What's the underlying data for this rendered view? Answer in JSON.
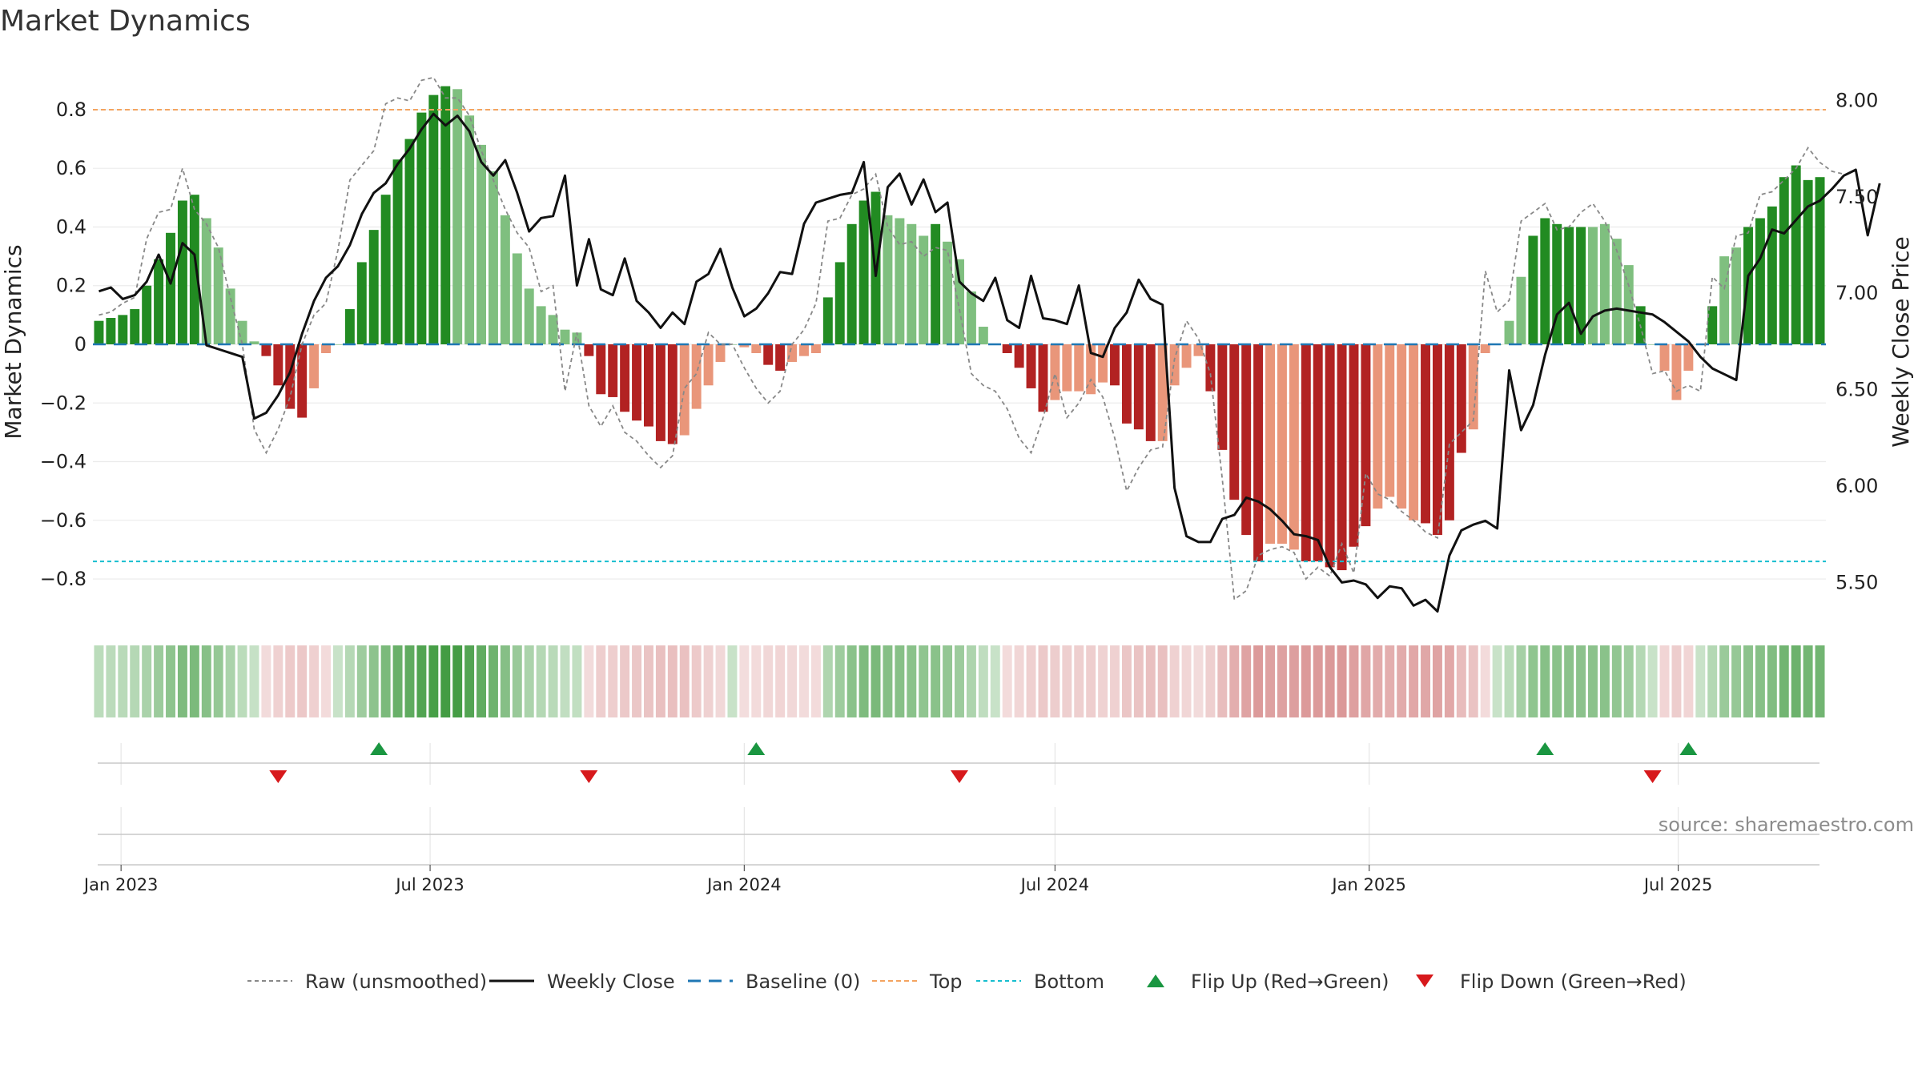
{
  "title": "Market Dynamics",
  "source_text": "source: sharemaestro.com",
  "colors": {
    "strong_up": "#228b22",
    "weak_up": "#7fbf7f",
    "strong_down": "#b22222",
    "weak_down": "#e9967a",
    "top_line": "#f4a460",
    "bottom_line": "#17becf",
    "baseline": "#1f77b4",
    "price_line": "#111111",
    "raw_line": "#888888",
    "flip_up": "#1a9641",
    "flip_down": "#d7191c"
  },
  "chart_data": {
    "type": "bar",
    "left_axis": {
      "label": "Market Dynamics",
      "ylim": [
        -0.95,
        0.95
      ],
      "ticks": [
        0.8,
        0.6,
        0.4,
        0.2,
        0,
        -0.2,
        -0.4,
        -0.6,
        -0.8
      ],
      "tick_labels": [
        "0.8",
        "0.6",
        "0.4",
        "0.2",
        "0",
        "−0.2",
        "−0.4",
        "−0.6",
        "−0.8"
      ]
    },
    "right_axis": {
      "label": "Weekly Close Price",
      "ylim": [
        5.29,
        8.18
      ],
      "ticks": [
        8.0,
        7.5,
        7.0,
        6.5,
        6.0,
        5.5
      ],
      "tick_labels": [
        "8.00",
        "7.50",
        "7.00",
        "6.50",
        "6.00",
        "5.50"
      ]
    },
    "x_axis": {
      "first_week": "2022-12-19",
      "ticks": [
        {
          "label": "Jan 2023",
          "date": "2023-01-01"
        },
        {
          "label": "Jul 2023",
          "date": "2023-07-01"
        },
        {
          "label": "Jan 2024",
          "date": "2024-01-01"
        },
        {
          "label": "Jul 2024",
          "date": "2024-07-01"
        },
        {
          "label": "Jan 2025",
          "date": "2025-01-01"
        },
        {
          "label": "Jul 2025",
          "date": "2025-07-01"
        }
      ]
    },
    "top_level": 0.8,
    "bottom_level": -0.74,
    "grid": true,
    "legend_position": "bottom-center",
    "series": [
      {
        "name": "Market Dynamics",
        "kind": "bar",
        "values": [
          0.08,
          0.09,
          0.1,
          0.12,
          0.2,
          0.29,
          0.38,
          0.49,
          0.51,
          0.43,
          0.33,
          0.19,
          0.08,
          0.01,
          -0.04,
          -0.14,
          -0.22,
          -0.25,
          -0.15,
          -0.03,
          0.0,
          0.12,
          0.28,
          0.39,
          0.51,
          0.63,
          0.7,
          0.79,
          0.85,
          0.88,
          0.87,
          0.78,
          0.68,
          0.59,
          0.44,
          0.31,
          0.19,
          0.13,
          0.1,
          0.05,
          0.04,
          -0.04,
          -0.17,
          -0.18,
          -0.23,
          -0.26,
          -0.28,
          -0.33,
          -0.34,
          -0.31,
          -0.22,
          -0.14,
          -0.06,
          -0.0,
          -0.01,
          -0.03,
          -0.07,
          -0.09,
          -0.06,
          -0.04,
          -0.03,
          0.16,
          0.28,
          0.41,
          0.49,
          0.52,
          0.44,
          0.43,
          0.41,
          0.37,
          0.41,
          0.35,
          0.29,
          0.18,
          0.06,
          0.0,
          -0.03,
          -0.08,
          -0.15,
          -0.23,
          -0.19,
          -0.16,
          -0.16,
          -0.17,
          -0.13,
          -0.14,
          -0.27,
          -0.29,
          -0.33,
          -0.33,
          -0.14,
          -0.08,
          -0.04,
          -0.16,
          -0.36,
          -0.53,
          -0.65,
          -0.74,
          -0.68,
          -0.68,
          -0.7,
          -0.74,
          -0.74,
          -0.76,
          -0.77,
          -0.69,
          -0.62,
          -0.56,
          -0.52,
          -0.56,
          -0.6,
          -0.61,
          -0.65,
          -0.6,
          -0.37,
          -0.29,
          -0.03,
          0.0,
          0.08,
          0.23,
          0.37,
          0.43,
          0.41,
          0.4,
          0.4,
          0.4,
          0.41,
          0.36,
          0.27,
          0.13,
          0.0,
          -0.09,
          -0.19,
          -0.09,
          0.0,
          0.13,
          0.3,
          0.33,
          0.4,
          0.43,
          0.47,
          0.57,
          0.61,
          0.56,
          0.57
        ],
        "strength": [
          "S",
          "S",
          "S",
          "S",
          "S",
          "S",
          "S",
          "S",
          "S",
          "W",
          "W",
          "W",
          "W",
          "W",
          "S",
          "S",
          "S",
          "S",
          "W",
          "W",
          "W",
          "S",
          "S",
          "S",
          "S",
          "S",
          "S",
          "S",
          "S",
          "S",
          "W",
          "W",
          "W",
          "W",
          "W",
          "W",
          "W",
          "W",
          "W",
          "W",
          "W",
          "S",
          "S",
          "S",
          "S",
          "S",
          "S",
          "S",
          "S",
          "W",
          "W",
          "W",
          "W",
          "W",
          "W",
          "W",
          "S",
          "S",
          "W",
          "W",
          "W",
          "S",
          "S",
          "S",
          "S",
          "S",
          "W",
          "W",
          "W",
          "W",
          "S",
          "W",
          "W",
          "W",
          "W",
          "W",
          "S",
          "S",
          "S",
          "S",
          "W",
          "W",
          "W",
          "W",
          "W",
          "S",
          "S",
          "S",
          "S",
          "W",
          "W",
          "W",
          "W",
          "S",
          "S",
          "S",
          "S",
          "S",
          "W",
          "W",
          "W",
          "S",
          "S",
          "S",
          "S",
          "S",
          "S",
          "W",
          "W",
          "W",
          "W",
          "S",
          "S",
          "S",
          "S",
          "W",
          "W",
          "W",
          "W",
          "W",
          "S",
          "S",
          "S",
          "S",
          "S",
          "W",
          "W",
          "W",
          "W",
          "S",
          "W",
          "W",
          "W",
          "W",
          "S",
          "S",
          "W",
          "W",
          "S",
          "S",
          "S",
          "S",
          "S",
          "S",
          "S",
          "S",
          "W",
          "S"
        ]
      },
      {
        "name": "Raw (unsmoothed)",
        "kind": "line",
        "axis": "left",
        "values": [
          0.1,
          0.11,
          0.14,
          0.16,
          0.36,
          0.45,
          0.46,
          0.6,
          0.46,
          0.41,
          0.33,
          0.16,
          0.0,
          -0.29,
          -0.37,
          -0.29,
          -0.18,
          0.0,
          0.1,
          0.14,
          0.32,
          0.56,
          0.61,
          0.66,
          0.82,
          0.84,
          0.83,
          0.9,
          0.91,
          0.84,
          0.84,
          0.78,
          0.66,
          0.56,
          0.46,
          0.38,
          0.33,
          0.18,
          0.2,
          -0.16,
          0.04,
          -0.21,
          -0.28,
          -0.21,
          -0.3,
          -0.33,
          -0.38,
          -0.42,
          -0.38,
          -0.15,
          -0.1,
          0.04,
          0.0,
          0.0,
          -0.08,
          -0.15,
          -0.2,
          -0.16,
          0.0,
          0.05,
          0.14,
          0.42,
          0.43,
          0.51,
          0.53,
          0.58,
          0.4,
          0.34,
          0.35,
          0.3,
          0.33,
          0.32,
          0.12,
          -0.1,
          -0.14,
          -0.16,
          -0.22,
          -0.32,
          -0.37,
          -0.25,
          -0.1,
          -0.25,
          -0.2,
          -0.12,
          -0.18,
          -0.32,
          -0.5,
          -0.42,
          -0.36,
          -0.35,
          -0.05,
          0.08,
          0.02,
          -0.1,
          -0.46,
          -0.87,
          -0.84,
          -0.72,
          -0.7,
          -0.69,
          -0.71,
          -0.8,
          -0.76,
          -0.79,
          -0.68,
          -0.78,
          -0.44,
          -0.51,
          -0.53,
          -0.57,
          -0.6,
          -0.64,
          -0.66,
          -0.34,
          -0.3,
          -0.26,
          0.25,
          0.11,
          0.15,
          0.42,
          0.45,
          0.48,
          0.39,
          0.4,
          0.45,
          0.48,
          0.42,
          0.32,
          0.2,
          0.06,
          -0.1,
          -0.09,
          -0.16,
          -0.14,
          -0.16,
          0.23,
          0.19,
          0.37,
          0.38,
          0.51,
          0.52,
          0.56,
          0.6,
          0.67,
          0.62,
          0.59,
          0.58
        ]
      },
      {
        "name": "Weekly Close",
        "kind": "line",
        "axis": "right",
        "values": [
          7.01,
          7.03,
          6.97,
          6.99,
          7.06,
          7.2,
          7.05,
          7.26,
          7.2,
          6.73,
          6.71,
          6.69,
          6.67,
          6.35,
          6.38,
          6.47,
          6.59,
          6.79,
          6.96,
          7.08,
          7.14,
          7.25,
          7.41,
          7.52,
          7.57,
          7.67,
          7.75,
          7.85,
          7.93,
          7.87,
          7.92,
          7.84,
          7.68,
          7.61,
          7.69,
          7.52,
          7.32,
          7.39,
          7.4,
          7.61,
          7.04,
          7.28,
          7.02,
          6.99,
          7.18,
          6.96,
          6.9,
          6.82,
          6.9,
          6.84,
          7.06,
          7.1,
          7.23,
          7.03,
          6.88,
          6.92,
          7.0,
          7.11,
          7.1,
          7.36,
          7.47,
          7.49,
          7.51,
          7.52,
          7.68,
          7.09,
          7.55,
          7.62,
          7.46,
          7.59,
          7.42,
          7.47,
          7.06,
          7.0,
          6.96,
          7.08,
          6.86,
          6.82,
          7.09,
          6.87,
          6.86,
          6.84,
          7.04,
          6.69,
          6.67,
          6.82,
          6.9,
          7.07,
          6.97,
          6.94,
          5.99,
          5.74,
          5.71,
          5.71,
          5.83,
          5.85,
          5.94,
          5.92,
          5.88,
          5.82,
          5.75,
          5.74,
          5.72,
          5.58,
          5.5,
          5.51,
          5.49,
          5.42,
          5.48,
          5.47,
          5.38,
          5.41,
          5.35,
          5.64,
          5.77,
          5.8,
          5.82,
          5.78,
          6.6,
          6.29,
          6.42,
          6.68,
          6.89,
          6.95,
          6.79,
          6.88,
          6.91,
          6.92,
          6.91,
          6.9,
          6.89,
          6.85,
          6.8,
          6.75,
          6.67,
          6.61,
          6.58,
          6.55,
          7.09,
          7.18,
          7.33,
          7.31,
          7.38,
          7.45,
          7.48,
          7.54,
          7.61,
          7.64,
          7.3,
          7.57
        ]
      },
      {
        "name": "Baseline (0)",
        "kind": "hline",
        "value": 0
      },
      {
        "name": "Top",
        "kind": "hline",
        "value": 0.8
      },
      {
        "name": "Bottom",
        "kind": "hline",
        "value": -0.74
      },
      {
        "name": "Flip Up (Red→Green)",
        "kind": "marker",
        "dates": [
          "2023-06-01",
          "2024-01-08",
          "2025-04-14",
          "2025-07-07"
        ]
      },
      {
        "name": "Flip Down (Green→Red)",
        "kind": "marker",
        "dates": [
          "2023-04-03",
          "2023-10-02",
          "2024-05-06",
          "2025-06-16"
        ]
      }
    ],
    "legend": [
      {
        "label": "Raw (unsmoothed)",
        "style": "raw"
      },
      {
        "label": "Weekly Close",
        "style": "close"
      },
      {
        "label": "Baseline (0)",
        "style": "baseline"
      },
      {
        "label": "Top",
        "style": "top"
      },
      {
        "label": "Bottom",
        "style": "bottom"
      },
      {
        "label": "Flip Up (Red→Green)",
        "style": "flipup"
      },
      {
        "label": "Flip Down (Green→Red)",
        "style": "flipdown"
      }
    ]
  }
}
